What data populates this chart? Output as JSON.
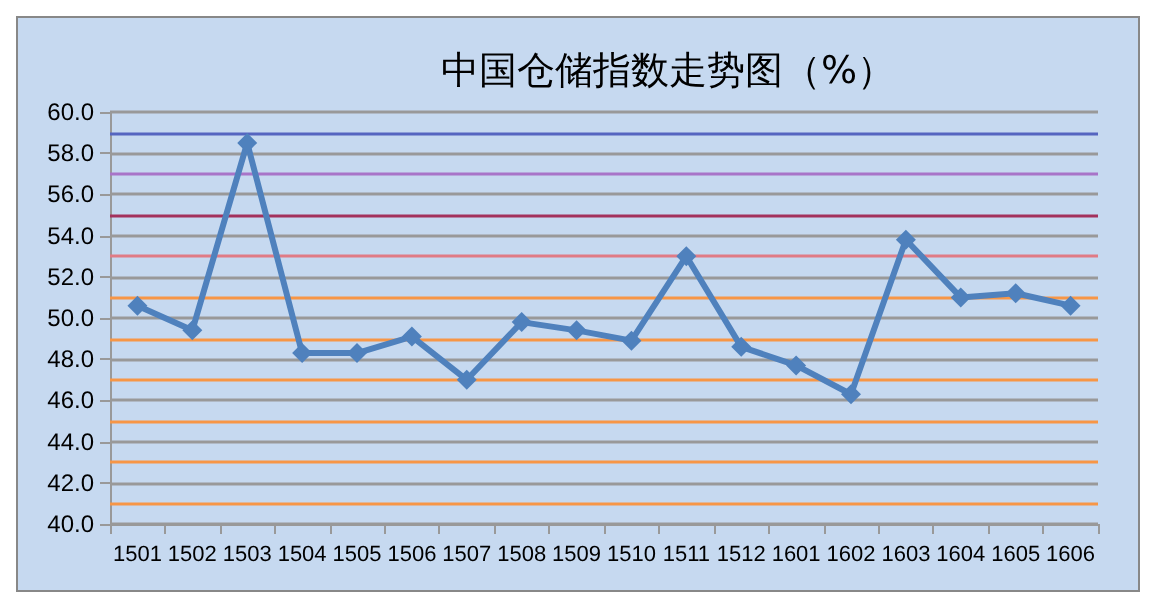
{
  "chart_data": {
    "type": "line",
    "title": "中国仓储指数走势图（%）",
    "categories": [
      "1501",
      "1502",
      "1503",
      "1504",
      "1505",
      "1506",
      "1507",
      "1508",
      "1509",
      "1510",
      "1511",
      "1512",
      "1601",
      "1602",
      "1603",
      "1604",
      "1605",
      "1606"
    ],
    "series": [
      {
        "color": "#4f81bd",
        "values": [
          50.6,
          49.4,
          58.5,
          48.3,
          48.3,
          49.1,
          47.0,
          49.8,
          49.4,
          48.9,
          53.0,
          48.6,
          47.7,
          46.3,
          53.8,
          51.0,
          51.2,
          50.6
        ]
      }
    ],
    "ylim": [
      40,
      60
    ],
    "yticks": [
      {
        "value": 40,
        "label": "40.0"
      },
      {
        "value": 42,
        "label": "42.0"
      },
      {
        "value": 44,
        "label": "44.0"
      },
      {
        "value": 46,
        "label": "46.0"
      },
      {
        "value": 48,
        "label": "48.0"
      },
      {
        "value": 50,
        "label": "50.0"
      },
      {
        "value": 52,
        "label": "52.0"
      },
      {
        "value": 54,
        "label": "54.0"
      },
      {
        "value": 56,
        "label": "56.0"
      },
      {
        "value": 58,
        "label": "58.0"
      },
      {
        "value": 60,
        "label": "60.0"
      }
    ],
    "grid": "y",
    "marker": "diamond",
    "line_style": "solid",
    "ref_lines": [
      {
        "axis": "y",
        "value": 41,
        "color": "#f79646"
      },
      {
        "axis": "y",
        "value": 43,
        "color": "#f79646"
      },
      {
        "axis": "y",
        "value": 45,
        "color": "#f79646"
      },
      {
        "axis": "y",
        "value": 47,
        "color": "#f79646"
      },
      {
        "axis": "y",
        "value": 49,
        "color": "#f79646"
      },
      {
        "axis": "y",
        "value": 51,
        "color": "#f79646"
      },
      {
        "axis": "y",
        "value": 53,
        "color": "#e07b85"
      },
      {
        "axis": "y",
        "value": 55,
        "color": "#a3315c"
      },
      {
        "axis": "y",
        "value": 57,
        "color": "#a874c8"
      },
      {
        "axis": "y",
        "value": 59,
        "color": "#5565c0"
      }
    ]
  }
}
